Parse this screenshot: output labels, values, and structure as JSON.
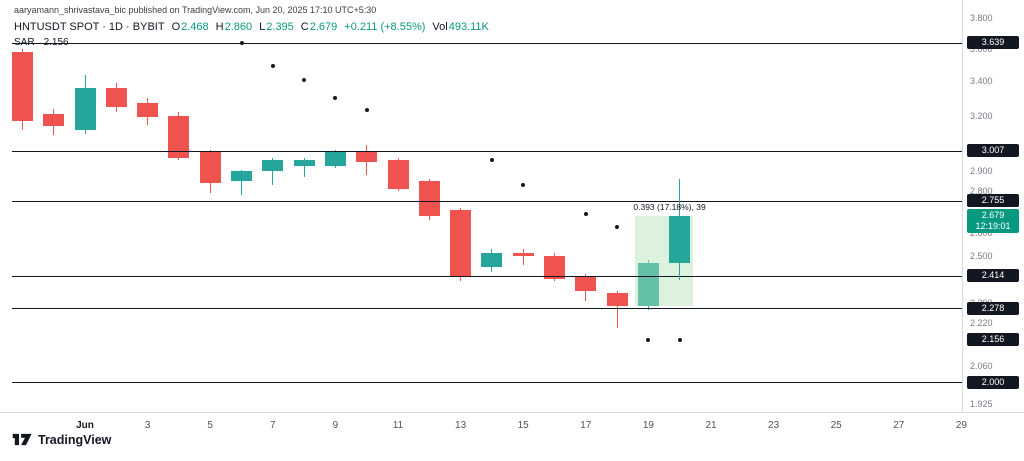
{
  "attribution": "aaryamann_shrivastava_bic published on TradingView.com, Jun 20, 2025 17:10 UTC+5:30",
  "legend": {
    "title": "HNTUSDT SPOT · 1D · BYBIT",
    "ohlc": [
      {
        "label": "O",
        "value": "2.468"
      },
      {
        "label": "H",
        "value": "2.860"
      },
      {
        "label": "L",
        "value": "2.395"
      },
      {
        "label": "C",
        "value": "2.679"
      }
    ],
    "change": "+0.211 (+8.55%)",
    "vol_label": "Vol",
    "vol_value": "493.11K"
  },
  "indicator": {
    "name": "SAR",
    "value": "2.156"
  },
  "colors": {
    "up": "#26a69a",
    "down": "#ef5350",
    "last_badge": "#089981",
    "level_line": "#131722",
    "sar_dot": "#131722",
    "highlight": "rgba(178,223,182,0.45)"
  },
  "chart_data": {
    "type": "candlestick",
    "symbol": "HNTUSDT",
    "exchange": "BYBIT",
    "interval": "1D",
    "scale": "log",
    "visible_price_range": [
      1.925,
      3.8
    ],
    "candles": [
      {
        "date": "May 30",
        "o": 3.58,
        "h": 3.6,
        "l": 3.12,
        "c": 3.17
      },
      {
        "date": "May 31",
        "o": 3.21,
        "h": 3.24,
        "l": 3.09,
        "c": 3.14
      },
      {
        "date": "Jun 1",
        "o": 3.12,
        "h": 3.44,
        "l": 3.1,
        "c": 3.36
      },
      {
        "date": "Jun 2",
        "o": 3.36,
        "h": 3.39,
        "l": 3.22,
        "c": 3.25
      },
      {
        "date": "Jun 3",
        "o": 3.27,
        "h": 3.3,
        "l": 3.15,
        "c": 3.19
      },
      {
        "date": "Jun 4",
        "o": 3.2,
        "h": 3.22,
        "l": 2.96,
        "c": 2.97
      },
      {
        "date": "Jun 5",
        "o": 3.0,
        "h": 3.01,
        "l": 2.79,
        "c": 2.84
      },
      {
        "date": "Jun 6",
        "o": 2.85,
        "h": 2.91,
        "l": 2.78,
        "c": 2.9
      },
      {
        "date": "Jun 7",
        "o": 2.9,
        "h": 2.97,
        "l": 2.83,
        "c": 2.96
      },
      {
        "date": "Jun 8",
        "o": 2.93,
        "h": 2.97,
        "l": 2.87,
        "c": 2.96
      },
      {
        "date": "Jun 9",
        "o": 2.93,
        "h": 3.01,
        "l": 2.92,
        "c": 3.0
      },
      {
        "date": "Jun 10",
        "o": 3.0,
        "h": 3.04,
        "l": 2.88,
        "c": 2.95
      },
      {
        "date": "Jun 11",
        "o": 2.96,
        "h": 2.97,
        "l": 2.8,
        "c": 2.81
      },
      {
        "date": "Jun 12",
        "o": 2.85,
        "h": 2.86,
        "l": 2.66,
        "c": 2.68
      },
      {
        "date": "Jun 13",
        "o": 2.71,
        "h": 2.72,
        "l": 2.39,
        "c": 2.41
      },
      {
        "date": "Jun 14",
        "o": 2.45,
        "h": 2.53,
        "l": 2.43,
        "c": 2.51
      },
      {
        "date": "Jun 15",
        "o": 2.51,
        "h": 2.53,
        "l": 2.46,
        "c": 2.5
      },
      {
        "date": "Jun 16",
        "o": 2.5,
        "h": 2.51,
        "l": 2.39,
        "c": 2.4
      },
      {
        "date": "Jun 17",
        "o": 2.41,
        "h": 2.42,
        "l": 2.31,
        "c": 2.35
      },
      {
        "date": "Jun 18",
        "o": 2.34,
        "h": 2.35,
        "l": 2.2,
        "c": 2.29
      },
      {
        "date": "Jun 19",
        "o": 2.29,
        "h": 2.48,
        "l": 2.27,
        "c": 2.468
      },
      {
        "date": "Jun 20",
        "o": 2.468,
        "h": 2.86,
        "l": 2.395,
        "c": 2.679
      }
    ],
    "sar_dots": [
      {
        "date": "Jun 6",
        "value": 3.639
      },
      {
        "date": "Jun 7",
        "value": 3.49
      },
      {
        "date": "Jun 8",
        "value": 3.41
      },
      {
        "date": "Jun 9",
        "value": 3.3
      },
      {
        "date": "Jun 10",
        "value": 3.23
      },
      {
        "date": "Jun 14",
        "value": 2.96
      },
      {
        "date": "Jun 15",
        "value": 2.83
      },
      {
        "date": "Jun 17",
        "value": 2.69
      },
      {
        "date": "Jun 18",
        "value": 2.63
      },
      {
        "date": "Jun 19",
        "value": 2.156
      },
      {
        "date": "Jun 20",
        "value": 2.156
      }
    ],
    "horizontal_levels": [
      3.639,
      3.007,
      2.755,
      2.414,
      2.278,
      2.0
    ],
    "range_annotation": {
      "label": "0.393 (17.18%), 39",
      "from_date": "Jun 19",
      "to_date": "Jun 20",
      "from_price": 2.286,
      "to_price": 2.679
    },
    "last_price": {
      "value": "2.679",
      "countdown": "12:19:01"
    }
  },
  "price_axis": {
    "labels": [
      "3.800",
      "3.600",
      "3.400",
      "3.200",
      "2.900",
      "2.800",
      "2.600",
      "2.500",
      "2.300",
      "2.220",
      "2.060",
      "1.925"
    ]
  },
  "time_axis": {
    "labels": [
      {
        "text": "Jun",
        "day": 1
      },
      {
        "text": "3",
        "day": 3
      },
      {
        "text": "5",
        "day": 5
      },
      {
        "text": "7",
        "day": 7
      },
      {
        "text": "9",
        "day": 9
      },
      {
        "text": "11",
        "day": 11
      },
      {
        "text": "13",
        "day": 13
      },
      {
        "text": "15",
        "day": 15
      },
      {
        "text": "17",
        "day": 17
      },
      {
        "text": "19",
        "day": 19
      },
      {
        "text": "21",
        "day": 21
      },
      {
        "text": "23",
        "day": 23
      },
      {
        "text": "25",
        "day": 25
      },
      {
        "text": "27",
        "day": 27
      },
      {
        "text": "29",
        "day": 29
      }
    ]
  },
  "footer": {
    "brand": "TradingView"
  }
}
